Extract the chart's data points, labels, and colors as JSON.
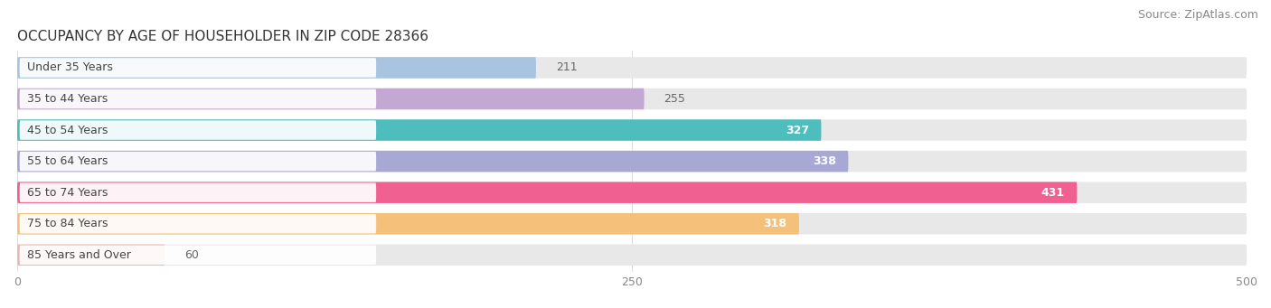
{
  "title": "OCCUPANCY BY AGE OF HOUSEHOLDER IN ZIP CODE 28366",
  "source": "Source: ZipAtlas.com",
  "categories": [
    "Under 35 Years",
    "35 to 44 Years",
    "45 to 54 Years",
    "55 to 64 Years",
    "65 to 74 Years",
    "75 to 84 Years",
    "85 Years and Over"
  ],
  "values": [
    211,
    255,
    327,
    338,
    431,
    318,
    60
  ],
  "bar_colors": [
    "#a8c4e0",
    "#c4a8d4",
    "#4dbdbd",
    "#a8a8d4",
    "#f06090",
    "#f5c07a",
    "#f0b8b0"
  ],
  "bar_bg_color": "#e8e8e8",
  "label_bg_color": "#ffffff",
  "xlim": [
    0,
    500
  ],
  "xticks": [
    0,
    250,
    500
  ],
  "title_fontsize": 11,
  "source_fontsize": 9,
  "label_fontsize": 9,
  "value_fontsize": 9,
  "bar_height": 0.68,
  "background_color": "#ffffff",
  "inside_label_threshold": 290
}
